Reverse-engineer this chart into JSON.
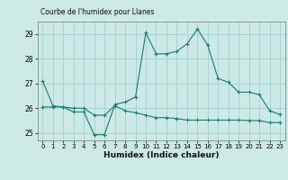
{
  "title": "Courbe de l'humidex pour Llanes",
  "xlabel": "Humidex (Indice chaleur)",
  "background_color": "#cce9e5",
  "grid_color": "#99cccc",
  "line_color": "#1a7a6e",
  "x": [
    0,
    1,
    2,
    3,
    4,
    5,
    6,
    7,
    8,
    9,
    10,
    11,
    12,
    13,
    14,
    15,
    16,
    17,
    18,
    19,
    20,
    21,
    22,
    23
  ],
  "line1": [
    27.1,
    26.1,
    26.05,
    25.85,
    25.85,
    24.93,
    24.93,
    26.15,
    26.25,
    26.45,
    29.05,
    28.2,
    28.2,
    28.3,
    28.6,
    29.2,
    28.55,
    27.2,
    27.05,
    26.65,
    26.65,
    26.55,
    25.9,
    25.75
  ],
  "line3": [
    26.05,
    26.05,
    26.05,
    26.0,
    26.0,
    25.72,
    25.72,
    26.1,
    25.9,
    25.82,
    25.72,
    25.62,
    25.62,
    25.58,
    25.52,
    25.52,
    25.52,
    25.52,
    25.52,
    25.52,
    25.5,
    25.5,
    25.42,
    25.42
  ],
  "ylim": [
    24.7,
    29.5
  ],
  "xlim": [
    -0.5,
    23.5
  ],
  "yticks": [
    25,
    26,
    27,
    28,
    29
  ],
  "xticks": [
    0,
    1,
    2,
    3,
    4,
    5,
    6,
    7,
    8,
    9,
    10,
    11,
    12,
    13,
    14,
    15,
    16,
    17,
    18,
    19,
    20,
    21,
    22,
    23
  ]
}
